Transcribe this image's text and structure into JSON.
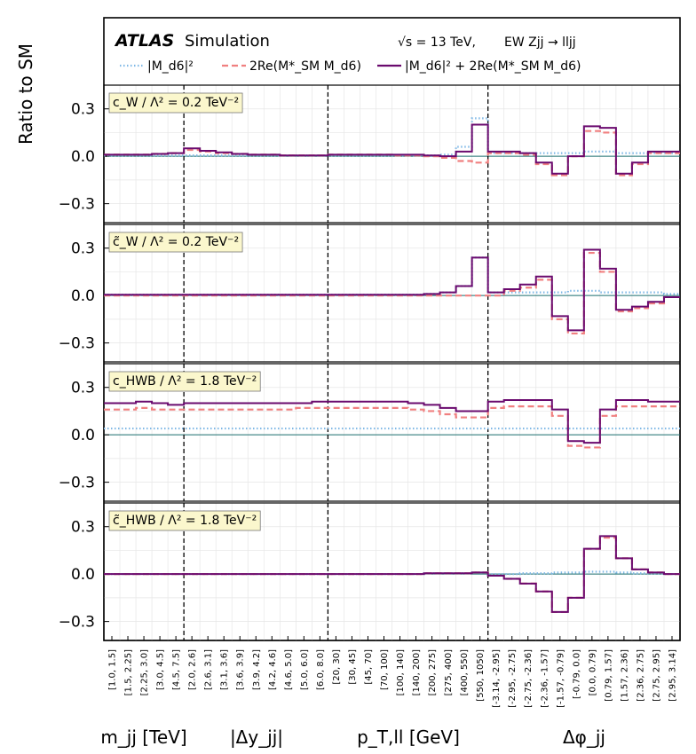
{
  "header": {
    "experiment": "ATLAS",
    "tag": "Simulation",
    "energy": "√s = 13 TeV,",
    "process": "EW  Zjj → lljj"
  },
  "legend": {
    "entries": [
      {
        "label": "|M_d6|²",
        "style": "dotted",
        "color": "#7fb8e6"
      },
      {
        "label": "2Re(M*_SM M_d6)",
        "style": "dashed",
        "color": "#f08080"
      },
      {
        "label": "|M_d6|² + 2Re(M*_SM M_d6)",
        "style": "solid",
        "color": "#6a0a6e"
      }
    ]
  },
  "ylabel": "Ratio to  SM",
  "group_labels": [
    "m_jj  [TeV]",
    "|Δy_jj|",
    "p_T,ll  [GeV]",
    "Δφ_jj"
  ],
  "colors": {
    "quad": "#7fb8e6",
    "interf": "#f08080",
    "total": "#6a0a6e",
    "zero_line": "#1a6e6e",
    "label_box_bg": "#fbf7cd",
    "grid": "#e6e6e6"
  },
  "chart_data": {
    "type": "step",
    "bin_labels": [
      "[1.0, 1.5]",
      "[1.5, 2.25]",
      "[2.25, 3.0]",
      "[3.0, 4.5]",
      "[4.5, 7.5]",
      "[2.0, 2.6]",
      "[2.6, 3.1]",
      "[3.1, 3.6]",
      "[3.6, 3.9]",
      "[3.9, 4.2]",
      "[4.2, 4.6]",
      "[4.6, 5.0]",
      "[5.0, 6.0]",
      "[6.0, 8.0]",
      "[20, 30]",
      "[30, 45]",
      "[45, 70]",
      "[70, 100]",
      "[100, 140]",
      "[140, 200]",
      "[200, 275]",
      "[275, 400]",
      "[400, 550]",
      "[550, 1050]",
      "[-3.14, -2.95]",
      "[-2.95, -2.75]",
      "[-2.75, -2.36]",
      "[-2.36, -1.57]",
      "[-1.57, -0.79]",
      "[-0.79, 0.0]",
      "[0.0, 0.79]",
      "[0.79, 1.57]",
      "[1.57, 2.36]",
      "[2.36, 2.75]",
      "[2.75, 2.95]",
      "[2.95, 3.14]"
    ],
    "group_boundaries_after_bin": [
      4,
      13,
      23
    ],
    "ylim": [
      -0.42,
      0.45
    ],
    "yticks": [
      0.3,
      0.0,
      -0.3
    ],
    "ytick_labels": [
      "0.3",
      "0.0",
      "−0.3"
    ],
    "grid": true,
    "panels": [
      {
        "label": "c_W / Λ² = 0.2 TeV⁻²",
        "quad": [
          0.005,
          0.005,
          0.005,
          0.005,
          0.005,
          0.005,
          0.005,
          0.005,
          0.005,
          0.005,
          0.005,
          0.005,
          0.005,
          0.005,
          0.005,
          0.005,
          0.005,
          0.005,
          0.005,
          0.005,
          0.005,
          0.01,
          0.06,
          0.24,
          0.02,
          0.02,
          0.02,
          0.02,
          0.02,
          0.02,
          0.03,
          0.03,
          0.02,
          0.02,
          0.02,
          0.02
        ],
        "interf": [
          0.01,
          0.01,
          0.01,
          0.015,
          0.02,
          0.04,
          0.03,
          0.02,
          0.015,
          0.01,
          0.01,
          0.005,
          0.005,
          0.005,
          0.01,
          0.01,
          0.01,
          0.01,
          0.005,
          0.005,
          0.0,
          -0.01,
          -0.03,
          -0.04,
          0.02,
          0.02,
          0.01,
          -0.05,
          -0.12,
          0.0,
          0.16,
          0.15,
          -0.12,
          -0.05,
          0.02,
          0.02
        ],
        "total": [
          0.01,
          0.01,
          0.01,
          0.015,
          0.02,
          0.05,
          0.035,
          0.025,
          0.015,
          0.01,
          0.01,
          0.005,
          0.005,
          0.005,
          0.01,
          0.01,
          0.01,
          0.01,
          0.01,
          0.01,
          0.005,
          0.0,
          0.03,
          0.2,
          0.03,
          0.03,
          0.02,
          -0.04,
          -0.11,
          0.0,
          0.19,
          0.18,
          -0.11,
          -0.04,
          0.03,
          0.03
        ]
      },
      {
        "label": "c̃_W / Λ² = 0.2 TeV⁻²",
        "quad": [
          0.005,
          0.005,
          0.005,
          0.005,
          0.005,
          0.005,
          0.005,
          0.005,
          0.005,
          0.005,
          0.005,
          0.005,
          0.005,
          0.005,
          0.005,
          0.005,
          0.005,
          0.005,
          0.005,
          0.005,
          0.01,
          0.02,
          0.06,
          0.24,
          0.02,
          0.02,
          0.02,
          0.02,
          0.02,
          0.03,
          0.03,
          0.02,
          0.02,
          0.02,
          0.02,
          0.01
        ],
        "interf": [
          0.0,
          0.0,
          0.0,
          0.0,
          0.0,
          0.0,
          0.0,
          0.0,
          0.0,
          0.0,
          0.0,
          0.0,
          0.0,
          0.0,
          0.0,
          0.0,
          0.0,
          0.0,
          0.0,
          0.0,
          0.0,
          0.0,
          0.0,
          0.0,
          0.0,
          0.03,
          0.05,
          0.1,
          -0.15,
          -0.24,
          0.27,
          0.15,
          -0.1,
          -0.08,
          -0.05,
          -0.01
        ],
        "total": [
          0.005,
          0.005,
          0.005,
          0.005,
          0.005,
          0.005,
          0.005,
          0.005,
          0.005,
          0.005,
          0.005,
          0.005,
          0.005,
          0.005,
          0.005,
          0.005,
          0.005,
          0.005,
          0.005,
          0.005,
          0.01,
          0.02,
          0.06,
          0.24,
          0.02,
          0.04,
          0.07,
          0.12,
          -0.13,
          -0.22,
          0.29,
          0.17,
          -0.09,
          -0.07,
          -0.04,
          -0.01
        ]
      },
      {
        "label": "c_HWB / Λ² = 1.8 TeV⁻²",
        "quad": [
          0.04,
          0.04,
          0.04,
          0.04,
          0.04,
          0.04,
          0.04,
          0.04,
          0.04,
          0.04,
          0.04,
          0.04,
          0.04,
          0.04,
          0.04,
          0.04,
          0.04,
          0.04,
          0.04,
          0.04,
          0.04,
          0.04,
          0.04,
          0.04,
          0.04,
          0.04,
          0.04,
          0.04,
          0.04,
          0.04,
          0.04,
          0.04,
          0.04,
          0.04,
          0.04,
          0.04
        ],
        "interf": [
          0.16,
          0.16,
          0.17,
          0.16,
          0.16,
          0.16,
          0.16,
          0.16,
          0.16,
          0.16,
          0.16,
          0.16,
          0.17,
          0.17,
          0.17,
          0.17,
          0.17,
          0.17,
          0.17,
          0.16,
          0.15,
          0.13,
          0.11,
          0.11,
          0.17,
          0.18,
          0.18,
          0.18,
          0.12,
          -0.07,
          -0.08,
          0.12,
          0.18,
          0.18,
          0.18,
          0.18
        ],
        "total": [
          0.2,
          0.2,
          0.21,
          0.2,
          0.19,
          0.2,
          0.2,
          0.2,
          0.2,
          0.2,
          0.2,
          0.2,
          0.2,
          0.21,
          0.21,
          0.21,
          0.21,
          0.21,
          0.21,
          0.2,
          0.19,
          0.17,
          0.15,
          0.15,
          0.21,
          0.22,
          0.22,
          0.22,
          0.16,
          -0.04,
          -0.05,
          0.16,
          0.22,
          0.22,
          0.21,
          0.21
        ]
      },
      {
        "label": "c̃_HWB / Λ² = 1.8 TeV⁻²",
        "quad": [
          0.0,
          0.0,
          0.0,
          0.0,
          0.0,
          0.0,
          0.0,
          0.0,
          0.0,
          0.0,
          0.0,
          0.0,
          0.0,
          0.0,
          0.0,
          0.0,
          0.0,
          0.0,
          0.0,
          0.0,
          0.005,
          0.005,
          0.005,
          0.01,
          0.0,
          0.0,
          0.005,
          0.005,
          0.01,
          0.01,
          0.015,
          0.015,
          0.01,
          0.005,
          0.005,
          0.0
        ],
        "interf": [
          0.0,
          0.0,
          0.0,
          0.0,
          0.0,
          0.0,
          0.0,
          0.0,
          0.0,
          0.0,
          0.0,
          0.0,
          0.0,
          0.0,
          0.0,
          0.0,
          0.0,
          0.0,
          0.0,
          0.0,
          0.005,
          0.005,
          0.005,
          0.01,
          -0.01,
          -0.03,
          -0.06,
          -0.11,
          -0.24,
          -0.15,
          0.16,
          0.23,
          0.1,
          0.03,
          0.01,
          0.0
        ],
        "total": [
          0.0,
          0.0,
          0.0,
          0.0,
          0.0,
          0.0,
          0.0,
          0.0,
          0.0,
          0.0,
          0.0,
          0.0,
          0.0,
          0.0,
          0.0,
          0.0,
          0.0,
          0.0,
          0.0,
          0.0,
          0.005,
          0.005,
          0.005,
          0.01,
          -0.01,
          -0.03,
          -0.06,
          -0.11,
          -0.24,
          -0.15,
          0.16,
          0.24,
          0.1,
          0.03,
          0.01,
          0.0
        ]
      }
    ]
  }
}
